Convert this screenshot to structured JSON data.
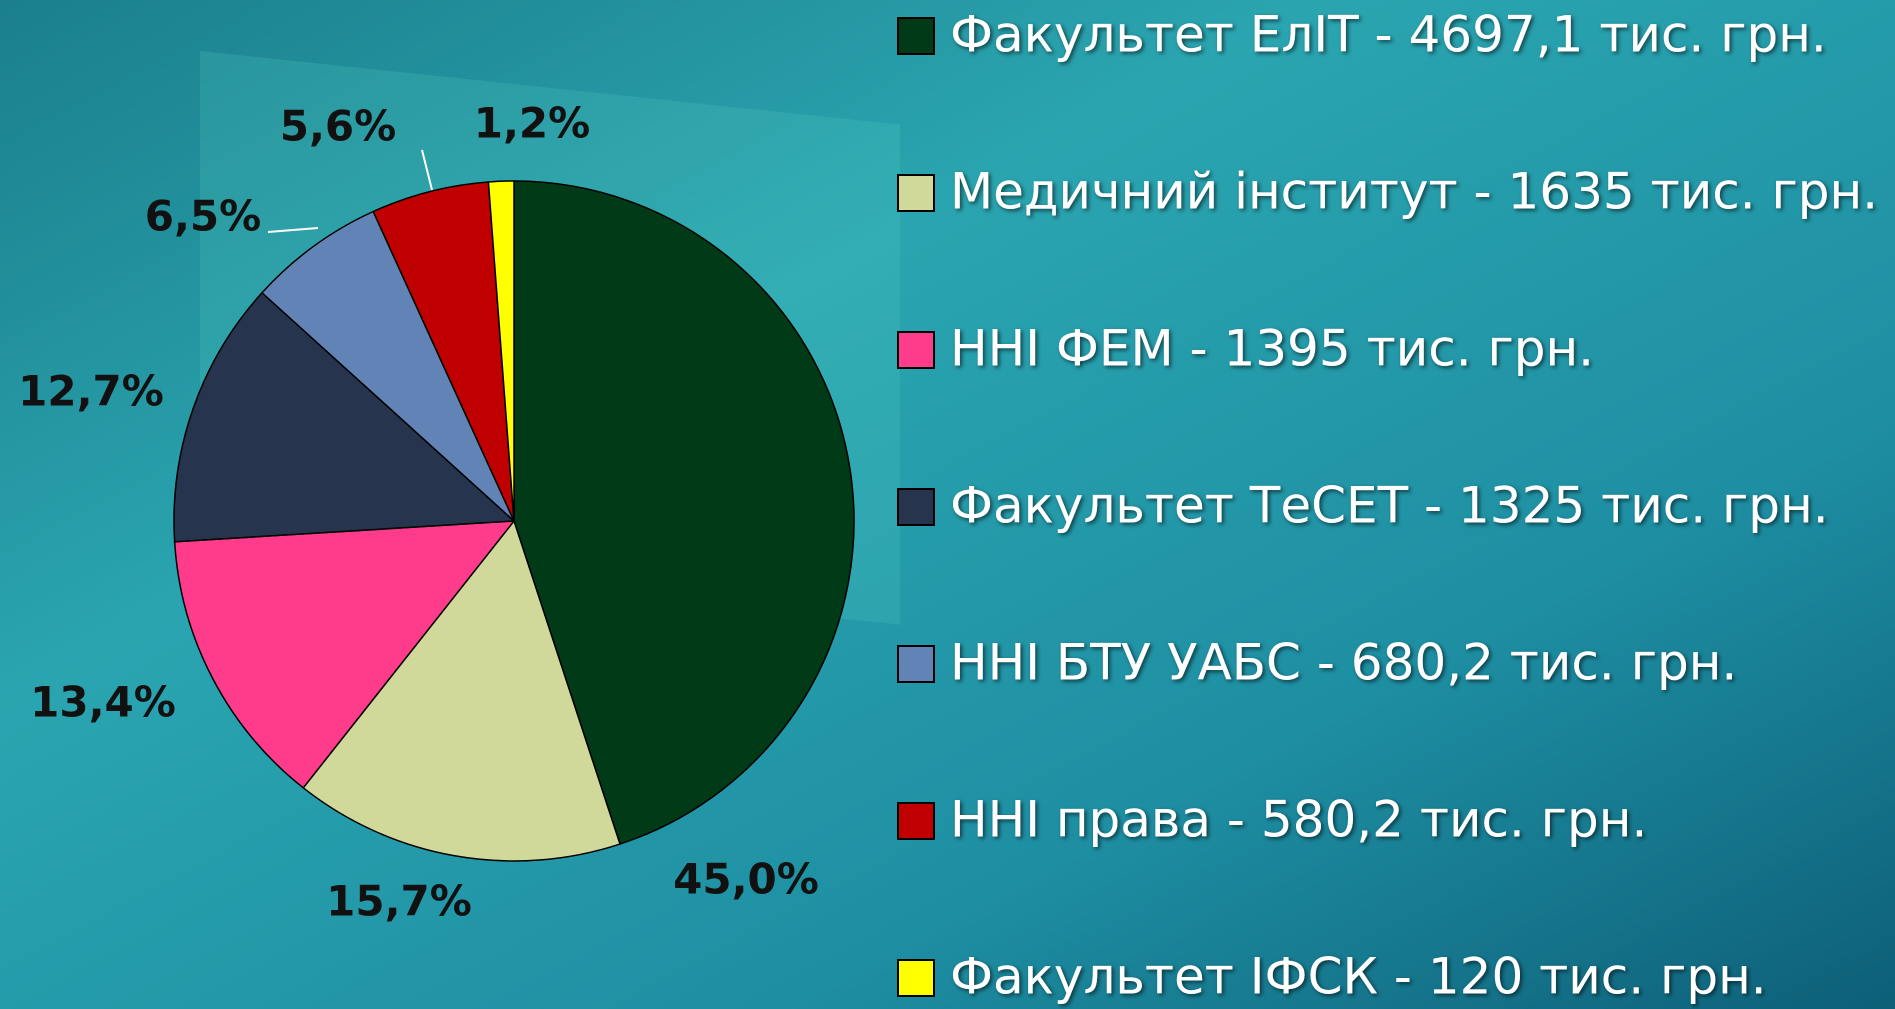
{
  "chart_data": {
    "type": "pie",
    "categories": [
      "Факультет ЕлІТ - 4697,1  тис. грн.",
      "Медичний інститут - 1635 тис. грн.",
      "ННІ ФЕМ  - 1395 тис. грн.",
      "Факультет ТеСЕТ - 1325 тис. грн.",
      "ННІ БТУ УАБС - 680,2 тис. грн.",
      "ННІ права - 580,2 тис. грн.",
      "Факультет ІФСК - 120 тис. грн."
    ],
    "values": [
      45.0,
      15.7,
      13.4,
      12.7,
      6.5,
      5.6,
      1.2
    ],
    "value_labels": [
      "45,0%",
      "15,7%",
      "13,4%",
      "12,7%",
      "6,5%",
      "5,6%",
      "1,2%"
    ],
    "colors": [
      "#003a17",
      "#d0d89a",
      "#ff3c8c",
      "#26344e",
      "#6283b5",
      "#c00000",
      "#ffff00"
    ],
    "legend": "right"
  }
}
